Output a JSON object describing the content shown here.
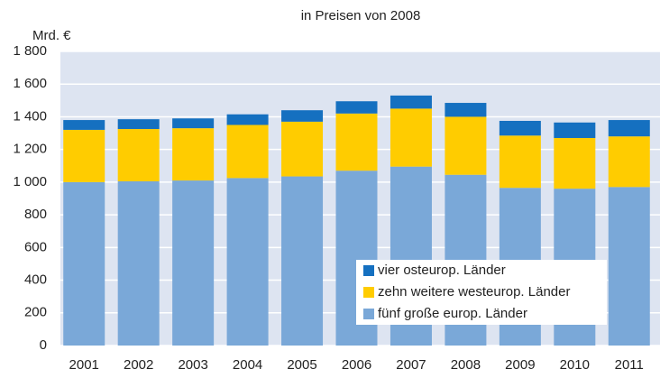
{
  "chart_data": {
    "type": "stacked_bar",
    "title": "in Preisen von 2008",
    "y_label": "Mrd. €",
    "categories": [
      "2001",
      "2002",
      "2003",
      "2004",
      "2005",
      "2006",
      "2007",
      "2008",
      "2009",
      "2010",
      "2011"
    ],
    "series": [
      {
        "name": "fünf große europ. Länder",
        "color": "#7aa8d8",
        "values": [
          1000,
          1005,
          1010,
          1025,
          1035,
          1070,
          1095,
          1045,
          965,
          960,
          970
        ]
      },
      {
        "name": "zehn weitere westeurop. Länder",
        "color": "#ffcc00",
        "values": [
          320,
          320,
          320,
          325,
          335,
          350,
          355,
          355,
          320,
          310,
          310
        ]
      },
      {
        "name": "vier osteurop. Länder",
        "color": "#1570c0",
        "values": [
          60,
          60,
          60,
          65,
          70,
          75,
          80,
          85,
          90,
          95,
          100
        ]
      }
    ],
    "ylim": [
      0,
      1800
    ],
    "yticks": [
      0,
      200,
      400,
      600,
      800,
      {
        "value": 1000,
        "label": "1 000"
      },
      {
        "value": 1200,
        "label": "1 200"
      },
      {
        "value": 1400,
        "label": "1 400"
      },
      {
        "value": 1600,
        "label": "1 600"
      },
      {
        "value": 1800,
        "label": "1 800"
      }
    ],
    "grid": true
  }
}
